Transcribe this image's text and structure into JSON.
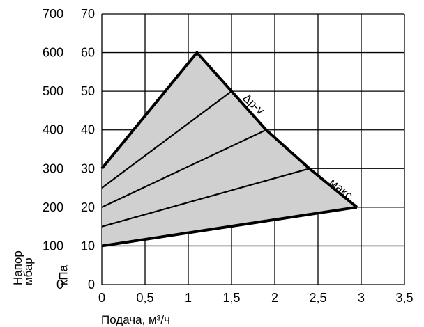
{
  "chart_data": {
    "type": "area",
    "xlabel": "Подача, м³/ч",
    "ylabel_left": "Напор мбар",
    "ylabel_right": "кПа",
    "xlim": [
      0,
      3.5
    ],
    "ylim_kpa": [
      0,
      70
    ],
    "ylim_mbar": [
      0,
      700
    ],
    "x_ticks": [
      "0",
      "0,5",
      "1",
      "1,5",
      "2",
      "2,5",
      "3",
      "3,5"
    ],
    "y_ticks_mbar": [
      "0",
      "100",
      "200",
      "300",
      "400",
      "500",
      "600",
      "700"
    ],
    "y_ticks_kpa": [
      "0",
      "10",
      "20",
      "30",
      "40",
      "50",
      "60",
      "70"
    ],
    "grid": true,
    "fill_color": "#d0d0d0",
    "line_color": "#000000",
    "envelope": {
      "max_curve": [
        [
          0,
          30
        ],
        [
          1.1,
          60
        ],
        [
          1.5,
          50
        ],
        [
          1.9,
          40
        ],
        [
          2.4,
          30
        ],
        [
          2.95,
          20
        ]
      ],
      "min_curve": [
        [
          0,
          10
        ],
        [
          2.95,
          20
        ]
      ]
    },
    "series": [
      {
        "values": [
          [
            0,
            15
          ],
          [
            2.4,
            30
          ]
        ]
      },
      {
        "values": [
          [
            0,
            20
          ],
          [
            1.9,
            40
          ]
        ]
      },
      {
        "values": [
          [
            0,
            25
          ],
          [
            1.5,
            50
          ]
        ]
      }
    ],
    "annotations": [
      {
        "text": "Δp-v",
        "x": 1.62,
        "y": 48,
        "angle": 42
      },
      {
        "text": "макс.",
        "x": 2.62,
        "y": 26,
        "angle": 38
      }
    ]
  }
}
